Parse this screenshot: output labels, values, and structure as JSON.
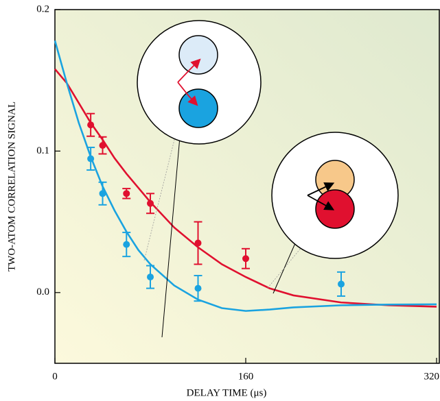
{
  "chart_data": {
    "type": "line",
    "xlabel": "DELAY TIME (μs)",
    "ylabel": "TWO-ATOM CORRELATION SIGNAL",
    "xlim": [
      0,
      320
    ],
    "ylim": [
      -0.05,
      0.2
    ],
    "xticks": [
      0,
      160,
      320
    ],
    "yticks": [
      {
        "value": 0,
        "label": "0.0"
      },
      0.1,
      0.2
    ],
    "series": [
      {
        "type": "line",
        "color": "#e0102f",
        "x": [
          0,
          10,
          20,
          30,
          40,
          50,
          60,
          70,
          80,
          100,
          120,
          140,
          160,
          180,
          200,
          240,
          280,
          320
        ],
        "values": [
          0.158,
          0.148,
          0.134,
          0.12,
          0.108,
          0.095,
          0.084,
          0.074,
          0.064,
          0.046,
          0.032,
          0.02,
          0.011,
          0.003,
          -0.002,
          -0.007,
          -0.009,
          -0.01
        ]
      },
      {
        "type": "line",
        "color": "#1aa3e0",
        "x": [
          0,
          10,
          20,
          30,
          40,
          50,
          60,
          70,
          80,
          100,
          120,
          140,
          160,
          180,
          200,
          240,
          280,
          320
        ],
        "values": [
          0.178,
          0.148,
          0.12,
          0.096,
          0.075,
          0.058,
          0.043,
          0.03,
          0.02,
          0.005,
          -0.005,
          -0.011,
          -0.013,
          -0.012,
          -0.0105,
          -0.009,
          -0.0085,
          -0.0083
        ]
      },
      {
        "type": "scatter",
        "color": "#e0102f",
        "x": [
          30,
          40,
          60,
          80,
          120,
          160
        ],
        "values": [
          0.1185,
          0.104,
          0.07,
          0.063,
          0.035,
          0.024
        ],
        "errors": [
          0.008,
          0.006,
          0.0035,
          0.007,
          0.015,
          0.007
        ]
      },
      {
        "type": "scatter",
        "color": "#1aa3e0",
        "x": [
          30,
          40,
          60,
          80,
          120,
          240
        ],
        "values": [
          0.0946,
          0.07,
          0.034,
          0.011,
          0.003,
          0.006
        ],
        "errors": [
          0.008,
          0.008,
          0.0085,
          0.008,
          0.009,
          0.0085
        ]
      }
    ]
  }
}
